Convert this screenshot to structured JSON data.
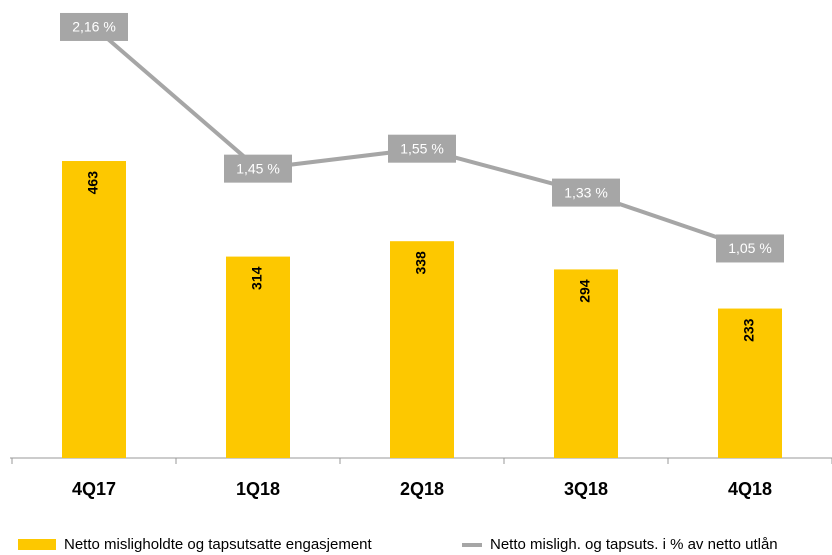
{
  "chart_data": {
    "type": "bar_line",
    "categories": [
      "4Q17",
      "1Q18",
      "2Q18",
      "3Q18",
      "4Q18"
    ],
    "series": [
      {
        "name": "Netto misligholdte og tapsutsatte engasjement",
        "color": "#fdc800",
        "type": "bar",
        "values": [
          463,
          314,
          338,
          294,
          233
        ]
      },
      {
        "name": "Netto misligh. og tapsuts. i % av netto utlån",
        "color": "#a6a6a6",
        "type": "line",
        "axis": "y2",
        "values": [
          2.16,
          1.45,
          1.55,
          1.33,
          1.05
        ],
        "value_labels": [
          "2,16 %",
          "1,45 %",
          "1,55 %",
          "1,33 %",
          "1,05 %"
        ]
      }
    ],
    "ylim": [
      0,
      700
    ],
    "y2lim": [
      0,
      2.25
    ]
  }
}
